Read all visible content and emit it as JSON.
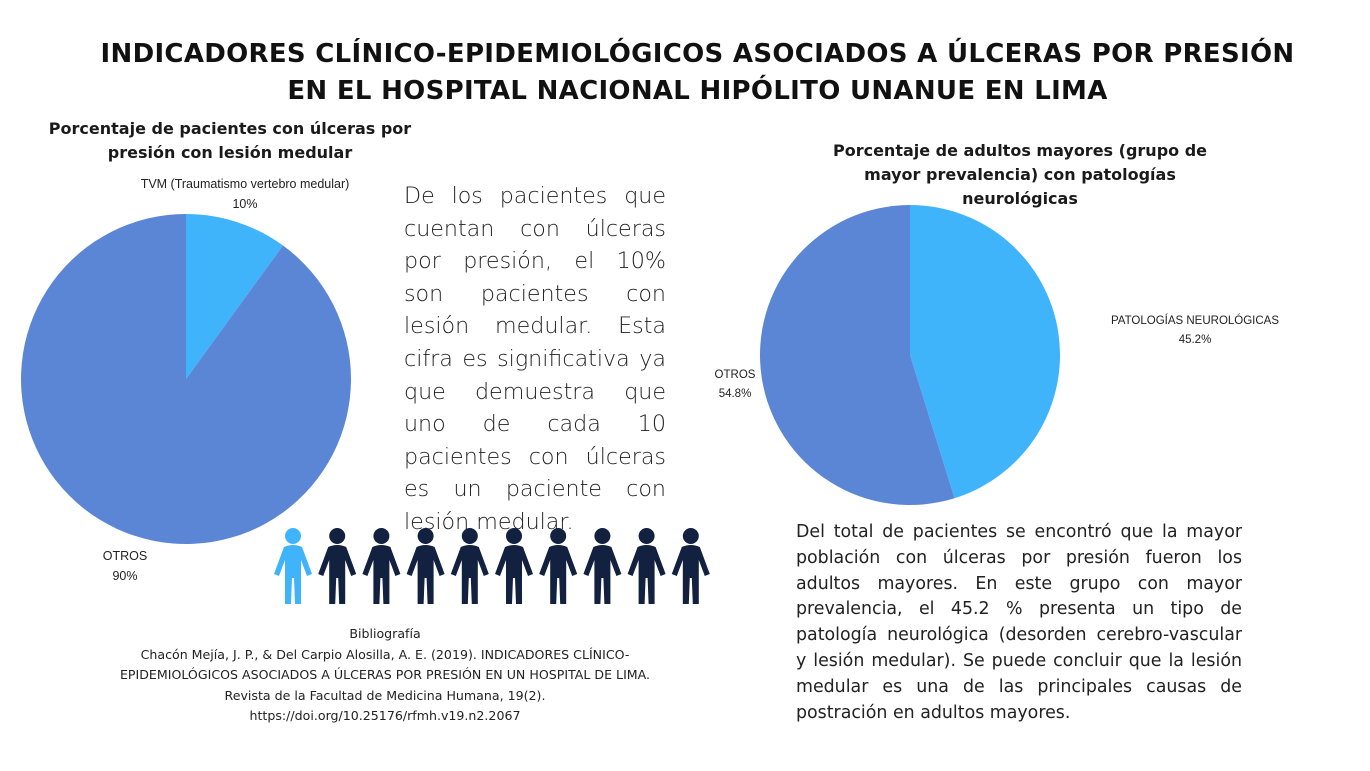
{
  "title": "INDICADORES CLÍNICO-EPIDEMIOLÓGICOS ASOCIADOS A ÚLCERAS POR PRESIÓN EN EL HOSPITAL NACIONAL HIPÓLITO UNANUE EN LIMA",
  "colors": {
    "dark_slice": "#5b86d6",
    "light_slice": "#40b4fb",
    "person_dark": "#12213f",
    "person_highlight": "#40b4fb"
  },
  "chart_data": [
    {
      "type": "pie",
      "title": "Porcentaje de pacientes con úlceras por presión con lesión medular",
      "labels": [
        "TVM (Traumatismo vertebro medular)",
        "OTROS"
      ],
      "values": [
        10,
        90
      ],
      "value_labels": [
        "10%",
        "90%"
      ],
      "colors": [
        "#40b4fb",
        "#5b86d6"
      ]
    },
    {
      "type": "pie",
      "title": "Porcentaje de adultos mayores (grupo de mayor prevalencia) con patologías neurológicas",
      "labels": [
        "PATOLOGÍAS NEUROLÓGICAS",
        "OTROS"
      ],
      "values": [
        45.2,
        54.8
      ],
      "value_labels": [
        "45.2%",
        "54.8%"
      ],
      "colors": [
        "#40b4fb",
        "#5b86d6"
      ]
    }
  ],
  "middle_text": "De los pacientes que cuentan con úlceras por presión, el 10% son pacientes con lesión medular. Esta cifra es significativa ya que demuestra que uno de cada 10 pacientes con úlceras es un paciente con lesión medular.",
  "people_icons": {
    "total": 10,
    "highlighted": 1
  },
  "right_text": "Del total de pacientes se encontró que la mayor población con úlceras por presión fueron los adultos mayores. En este grupo con mayor prevalencia, el 45.2 % presenta un tipo de patología neurológica (desorden cerebro-vascular y lesión medular). Se puede concluir que la lesión medular es una de las principales causas de postración en adultos mayores.",
  "bibliography": {
    "heading": "Bibliografía",
    "lines": [
      "Chacón Mejía, J. P., & Del Carpio Alosilla, A. E. (2019). INDICADORES CLÍNICO-",
      "EPIDEMIOLÓGICOS ASOCIADOS A ÚLCERAS POR PRESIÓN EN UN HOSPITAL DE LIMA.",
      "Revista de la Facultad de Medicina Humana, 19(2).",
      "https://doi.org/10.25176/rfmh.v19.n2.2067"
    ]
  }
}
